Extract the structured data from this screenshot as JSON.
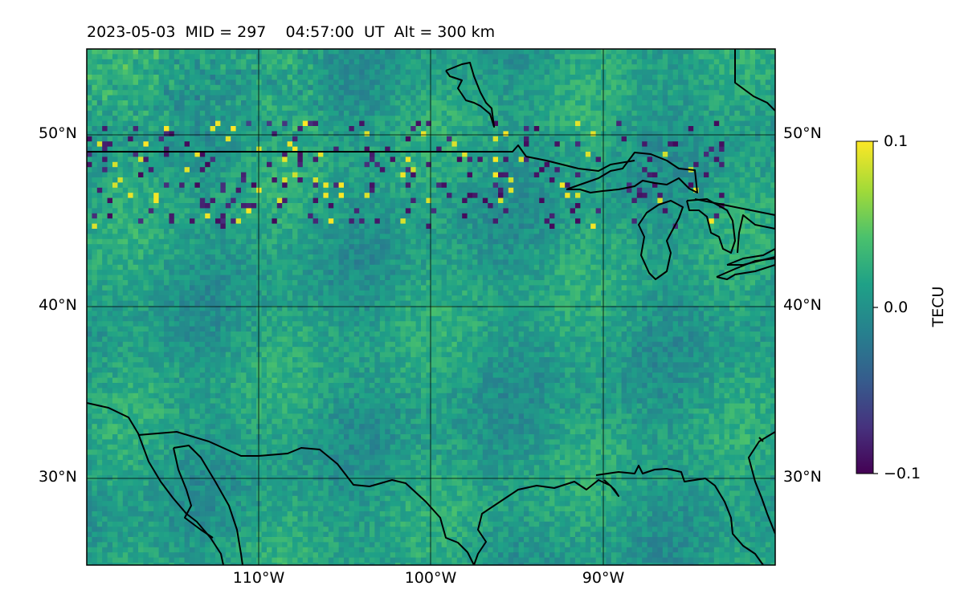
{
  "title": "2023-05-03  MID = 297    04:57:00  UT  Alt = 300 km",
  "map": {
    "lon_range": [
      -120,
      -80
    ],
    "lat_range": [
      25,
      55
    ],
    "grid": true,
    "lat_ticks": [
      {
        "value": 50,
        "label": "50°N"
      },
      {
        "value": 40,
        "label": "40°N"
      },
      {
        "value": 30,
        "label": "30°N"
      }
    ],
    "lon_ticks": [
      {
        "value": -110,
        "label": "110°W"
      },
      {
        "value": -100,
        "label": "100°W"
      },
      {
        "value": -90,
        "label": "90°W"
      }
    ]
  },
  "colorbar": {
    "label": "TECU",
    "colormap": "viridis",
    "vmin": -0.1,
    "vmax": 0.1,
    "ticks": [
      {
        "value": 0.1,
        "label": "0.1"
      },
      {
        "value": 0.0,
        "label": "0.0"
      },
      {
        "value": -0.1,
        "label": "−0.1"
      }
    ]
  }
}
